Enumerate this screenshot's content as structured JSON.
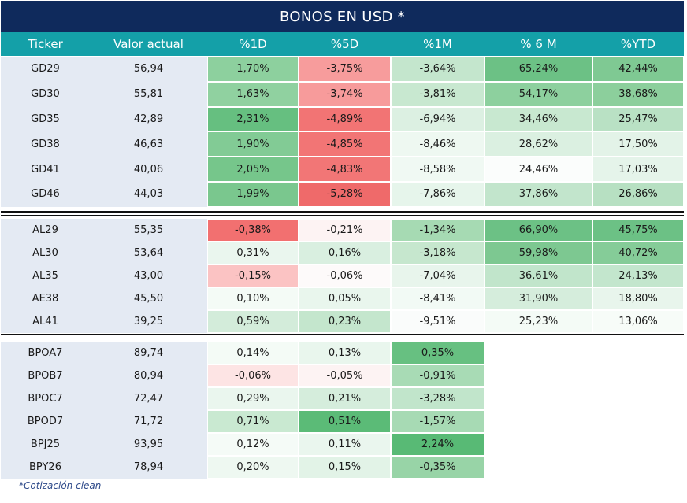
{
  "title": "BONOS EN USD *",
  "columns": [
    "Ticker",
    "Valor actual",
    "%1D",
    "%5D",
    "%1M",
    "% 6 M",
    "%YTD"
  ],
  "groups": [
    {
      "rows": [
        {
          "ticker": "GD29",
          "valor": "56,94",
          "d1": "1,70%",
          "d5": "-3,75%",
          "m1": "-3,64%",
          "m6": "65,24%",
          "ytd": "42,44%"
        },
        {
          "ticker": "GD30",
          "valor": "55,81",
          "d1": "1,63%",
          "d5": "-3,74%",
          "m1": "-3,81%",
          "m6": "54,17%",
          "ytd": "38,68%"
        },
        {
          "ticker": "GD35",
          "valor": "42,89",
          "d1": "2,31%",
          "d5": "-4,89%",
          "m1": "-6,94%",
          "m6": "34,46%",
          "ytd": "25,47%"
        },
        {
          "ticker": "GD38",
          "valor": "46,63",
          "d1": "1,90%",
          "d5": "-4,85%",
          "m1": "-8,46%",
          "m6": "28,62%",
          "ytd": "17,50%"
        },
        {
          "ticker": "GD41",
          "valor": "40,06",
          "d1": "2,05%",
          "d5": "-4,83%",
          "m1": "-8,58%",
          "m6": "24,46%",
          "ytd": "17,03%"
        },
        {
          "ticker": "GD46",
          "valor": "44,03",
          "d1": "1,99%",
          "d5": "-5,28%",
          "m1": "-7,86%",
          "m6": "37,86%",
          "ytd": "26,86%"
        }
      ]
    },
    {
      "rows": [
        {
          "ticker": "AL29",
          "valor": "55,35",
          "d1": "-0,38%",
          "d5": "-0,21%",
          "m1": "-1,34%",
          "m6": "66,90%",
          "ytd": "45,75%"
        },
        {
          "ticker": "AL30",
          "valor": "53,64",
          "d1": "0,31%",
          "d5": "0,16%",
          "m1": "-3,18%",
          "m6": "59,98%",
          "ytd": "40,72%"
        },
        {
          "ticker": "AL35",
          "valor": "43,00",
          "d1": "-0,15%",
          "d5": "-0,06%",
          "m1": "-7,04%",
          "m6": "36,61%",
          "ytd": "24,13%"
        },
        {
          "ticker": "AE38",
          "valor": "45,50",
          "d1": "0,10%",
          "d5": "0,05%",
          "m1": "-8,41%",
          "m6": "31,90%",
          "ytd": "18,80%"
        },
        {
          "ticker": "AL41",
          "valor": "39,25",
          "d1": "0,59%",
          "d5": "0,23%",
          "m1": "-9,51%",
          "m6": "25,23%",
          "ytd": "13,06%"
        }
      ]
    },
    {
      "rows": [
        {
          "ticker": "BPOA7",
          "valor": "89,74",
          "d1": "0,14%",
          "d5": "0,13%",
          "m1": "0,35%",
          "m6": "",
          "ytd": ""
        },
        {
          "ticker": "BPOB7",
          "valor": "80,94",
          "d1": "-0,06%",
          "d5": "-0,05%",
          "m1": "-0,91%",
          "m6": "",
          "ytd": ""
        },
        {
          "ticker": "BPOC7",
          "valor": "72,47",
          "d1": "0,29%",
          "d5": "0,21%",
          "m1": "-3,28%",
          "m6": "",
          "ytd": ""
        },
        {
          "ticker": "BPOD7",
          "valor": "71,72",
          "d1": "0,71%",
          "d5": "0,51%",
          "m1": "-1,57%",
          "m6": "",
          "ytd": ""
        },
        {
          "ticker": "BPJ25",
          "valor": "93,95",
          "d1": "0,12%",
          "d5": "0,11%",
          "m1": "2,24%",
          "m6": "",
          "ytd": ""
        },
        {
          "ticker": "BPY26",
          "valor": "78,94",
          "d1": "0,20%",
          "d5": "0,15%",
          "m1": "-0,35%",
          "m6": "",
          "ytd": ""
        }
      ]
    }
  ],
  "cell_colors": {
    "g0": [
      [
        "#8dd09e",
        "#f79c9c",
        "#c4e6cd",
        "#6cc185",
        "#7fc993"
      ],
      [
        "#90d1a0",
        "#f79b9b",
        "#c8e8d0",
        "#8dd09e",
        "#8ccf9c"
      ],
      [
        "#66bf80",
        "#f27474",
        "#dcf0e2",
        "#c8e8d0",
        "#b9e1c4"
      ],
      [
        "#82cb95",
        "#f27575",
        "#eef8f1",
        "#dbf0e1",
        "#e3f3e8"
      ],
      [
        "#76c68b",
        "#f27676",
        "#f0f9f3",
        "#fbfdfc",
        "#e5f4ea"
      ],
      [
        "#7ac78e",
        "#ef6a6a",
        "#e6f5eb",
        "#c2e5cc",
        "#b7e0c2"
      ]
    ],
    "g1": [
      [
        "#f27070",
        "#fdf3f3",
        "#a6dab3",
        "#6cc185",
        "#6cc185"
      ],
      [
        "#eaf6ee",
        "#d9efe0",
        "#c6e7ce",
        "#7dc891",
        "#85cc98"
      ],
      [
        "#fbc3c3",
        "#fdfafa",
        "#e8f5ec",
        "#c1e5cb",
        "#c3e6cd"
      ],
      [
        "#f4fbf6",
        "#e9f6ed",
        "#f2faf5",
        "#d5eddc",
        "#e8f5ec"
      ],
      [
        "#d3ecda",
        "#c4e6cd",
        "#fafcfb",
        "#f4fbf6",
        "#f7fcf8"
      ]
    ],
    "g2": [
      [
        "#f4fbf6",
        "#e9f6ed",
        "#67c081",
        "#ffffff",
        "#ffffff"
      ],
      [
        "#fde4e4",
        "#fdf3f3",
        "#a8dbb5",
        "#ffffff",
        "#ffffff"
      ],
      [
        "#eaf6ee",
        "#d5eddc",
        "#c1e5cb",
        "#ffffff",
        "#ffffff"
      ],
      [
        "#c9e9d1",
        "#5bbb77",
        "#a7dab4",
        "#ffffff",
        "#ffffff"
      ],
      [
        "#f5fbf7",
        "#eaf6ee",
        "#58ba75",
        "#ffffff",
        "#ffffff"
      ],
      [
        "#eef8f1",
        "#e2f3e7",
        "#98d4a7",
        "#ffffff",
        "#ffffff"
      ]
    ]
  },
  "footnote": "*Cotización clean"
}
